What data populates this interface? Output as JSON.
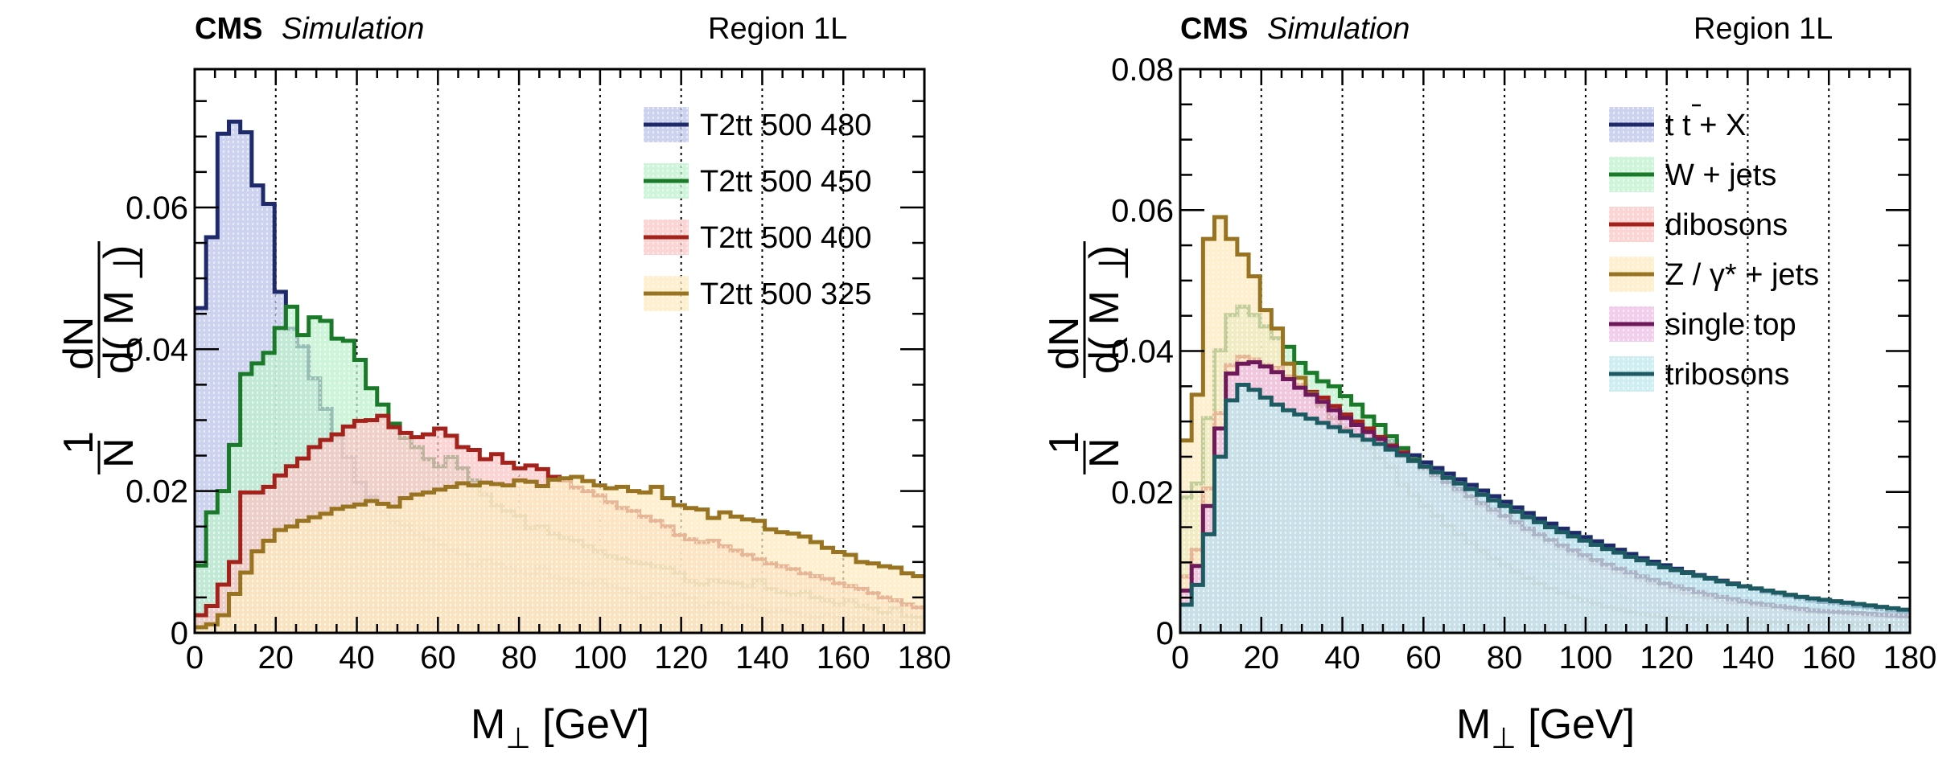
{
  "chart_data": [
    {
      "type": "line",
      "subtype": "step-histogram",
      "title": "CMS Simulation",
      "title_bold": "CMS",
      "title_italic": "Simulation",
      "region_label": "Region 1L",
      "xlabel": "M⊥ [GeV]",
      "ylabel": "1/N dN/d(M⊥)",
      "ylabel_parts": {
        "one": "1",
        "n": "N",
        "dn": "dN",
        "dm": "d( M",
        "perp": "⊥",
        "close": ")"
      },
      "xlim": [
        0,
        180
      ],
      "ylim": [
        0,
        0.0795
      ],
      "x_ticks": [
        0,
        20,
        40,
        60,
        80,
        100,
        120,
        140,
        160,
        180
      ],
      "x_tick_labels": [
        "0",
        "20",
        "40",
        "60",
        "80",
        "100",
        "120",
        "140",
        "160",
        "180"
      ],
      "y_ticks": [
        0,
        0.02,
        0.04,
        0.06
      ],
      "y_tick_labels": [
        "0",
        "0.02",
        "0.04",
        "0.06"
      ],
      "grid": "vertical dotted",
      "legend_position": "top-right",
      "bin_width": 2.8125,
      "series": [
        {
          "name": "T2tt 500 480",
          "line_color": "#1f2a6b",
          "fill_color": "#bcc3ea",
          "values": [
            0.0458,
            0.0558,
            0.0704,
            0.0721,
            0.0706,
            0.0631,
            0.0605,
            0.0481,
            0.0429,
            0.0404,
            0.0359,
            0.0316,
            0.0277,
            0.0248,
            0.0212,
            0.0192,
            0.017,
            0.0156,
            0.0152,
            0.014,
            0.0132,
            0.0124,
            0.0117,
            0.011,
            0.0096,
            0.0102,
            0.0098,
            0.0092,
            0.0086,
            0.0082,
            0.0093,
            0.0079,
            0.0076,
            0.0072,
            0.0068,
            0.0074,
            0.0066,
            0.0062,
            0.0058,
            0.005,
            0.0055,
            0.0052,
            0.0054,
            0.0049,
            0.0037,
            0.0043,
            0.0041,
            0.0035,
            0.0038,
            0.0033,
            0.003,
            0.0032,
            0.0028,
            0.0025,
            0.0022,
            0.0026,
            0.0021,
            0.0018,
            0.002,
            0.0017,
            0.0019,
            0.0016,
            0.0014,
            0.0013
          ]
        },
        {
          "name": "T2tt 500 450",
          "line_color": "#1a7a2a",
          "fill_color": "#bdf0cc",
          "values": [
            0.0095,
            0.017,
            0.02,
            0.0265,
            0.0365,
            0.038,
            0.0395,
            0.043,
            0.046,
            0.042,
            0.0445,
            0.044,
            0.0415,
            0.0412,
            0.0385,
            0.0345,
            0.0322,
            0.0295,
            0.0275,
            0.0262,
            0.0245,
            0.0235,
            0.0248,
            0.0232,
            0.0215,
            0.0195,
            0.018,
            0.0172,
            0.0165,
            0.0148,
            0.015,
            0.014,
            0.0134,
            0.013,
            0.0122,
            0.0115,
            0.0108,
            0.0105,
            0.01,
            0.0098,
            0.0094,
            0.0092,
            0.0085,
            0.0073,
            0.0068,
            0.0074,
            0.0072,
            0.007,
            0.0066,
            0.0074,
            0.0062,
            0.0058,
            0.0054,
            0.0058,
            0.005,
            0.0046,
            0.004,
            0.0046,
            0.0038,
            0.0034,
            0.0028,
            0.0035,
            0.0024,
            0.0022
          ]
        },
        {
          "name": "T2tt 500 400",
          "line_color": "#a3221c",
          "fill_color": "#f9c6c4",
          "values": [
            0.0025,
            0.0038,
            0.0068,
            0.01,
            0.0198,
            0.0198,
            0.0206,
            0.0222,
            0.0235,
            0.0246,
            0.0262,
            0.0272,
            0.028,
            0.0291,
            0.0299,
            0.03,
            0.0306,
            0.029,
            0.0282,
            0.0276,
            0.028,
            0.0288,
            0.0278,
            0.0262,
            0.0258,
            0.0245,
            0.0252,
            0.024,
            0.0232,
            0.0236,
            0.0231,
            0.022,
            0.0215,
            0.0205,
            0.02,
            0.0194,
            0.0184,
            0.0176,
            0.0172,
            0.0164,
            0.0158,
            0.015,
            0.0138,
            0.0132,
            0.0128,
            0.013,
            0.0122,
            0.0116,
            0.011,
            0.0104,
            0.0098,
            0.0094,
            0.009,
            0.0084,
            0.008,
            0.0076,
            0.007,
            0.0066,
            0.0062,
            0.0056,
            0.005,
            0.0046,
            0.004,
            0.0036
          ]
        },
        {
          "name": "T2tt 500 325",
          "line_color": "#987321",
          "fill_color": "#fde9bd",
          "values": [
            0.0008,
            0.0012,
            0.0025,
            0.0055,
            0.0085,
            0.0115,
            0.013,
            0.0145,
            0.015,
            0.0158,
            0.0163,
            0.0168,
            0.0175,
            0.0178,
            0.0181,
            0.0186,
            0.0182,
            0.0178,
            0.019,
            0.0195,
            0.0198,
            0.0202,
            0.0206,
            0.0211,
            0.0208,
            0.0212,
            0.021,
            0.0208,
            0.0215,
            0.0213,
            0.0207,
            0.0216,
            0.0218,
            0.022,
            0.0214,
            0.0208,
            0.0204,
            0.0206,
            0.02,
            0.0198,
            0.0206,
            0.019,
            0.018,
            0.0176,
            0.0174,
            0.0162,
            0.017,
            0.0164,
            0.016,
            0.0158,
            0.0146,
            0.0142,
            0.014,
            0.0136,
            0.0128,
            0.012,
            0.0114,
            0.011,
            0.01,
            0.0098,
            0.0094,
            0.0092,
            0.0084,
            0.008
          ]
        }
      ]
    },
    {
      "type": "line",
      "subtype": "step-histogram",
      "title": "CMS Simulation",
      "title_bold": "CMS",
      "title_italic": "Simulation",
      "region_label": "Region 1L",
      "xlabel": "M⊥ [GeV]",
      "ylabel": "1/N dN/d(M⊥)",
      "ylabel_parts": {
        "one": "1",
        "n": "N",
        "dn": "dN",
        "dm": "d( M",
        "perp": "⊥",
        "close": ")"
      },
      "xlim": [
        0,
        180
      ],
      "ylim": [
        0,
        0.08
      ],
      "x_ticks": [
        0,
        20,
        40,
        60,
        80,
        100,
        120,
        140,
        160,
        180
      ],
      "x_tick_labels": [
        "0",
        "20",
        "40",
        "60",
        "80",
        "100",
        "120",
        "140",
        "160",
        "180"
      ],
      "y_ticks": [
        0,
        0.02,
        0.04,
        0.06,
        0.08
      ],
      "y_tick_labels": [
        "0",
        "0.02",
        "0.04",
        "0.06",
        "0.08"
      ],
      "grid": "vertical dotted",
      "legend_position": "top-right",
      "bin_width": 2.8125,
      "series": [
        {
          "name": "t t̄ + X",
          "legend_main": "t t",
          "legend_suffix": " + X",
          "line_color": "#1f2a6b",
          "fill_color": "#bcc3ea",
          "values": [
            0.0056,
            0.0067,
            0.0128,
            0.0226,
            0.0314,
            0.035,
            0.0348,
            0.033,
            0.0321,
            0.0313,
            0.031,
            0.0305,
            0.03,
            0.0297,
            0.0292,
            0.0288,
            0.0284,
            0.0278,
            0.0272,
            0.0262,
            0.0252,
            0.0242,
            0.0234,
            0.0226,
            0.0218,
            0.021,
            0.0202,
            0.0194,
            0.0186,
            0.0178,
            0.017,
            0.0162,
            0.0155,
            0.0148,
            0.0142,
            0.0136,
            0.013,
            0.0124,
            0.0118,
            0.0112,
            0.0106,
            0.0101,
            0.0096,
            0.0091,
            0.0086,
            0.0082,
            0.0078,
            0.0074,
            0.007,
            0.0066,
            0.0062,
            0.0058,
            0.0055,
            0.0052,
            0.0049,
            0.0046,
            0.0044,
            0.0042,
            0.004,
            0.0038,
            0.0036,
            0.0034,
            0.0032,
            0.003
          ]
        },
        {
          "name": "W + jets",
          "line_color": "#1a7a2a",
          "fill_color": "#bdf0cc",
          "values": [
            0.0192,
            0.0212,
            0.0305,
            0.0401,
            0.0451,
            0.0463,
            0.0451,
            0.0435,
            0.0418,
            0.0406,
            0.0383,
            0.0369,
            0.0357,
            0.035,
            0.0336,
            0.0324,
            0.0307,
            0.0295,
            0.0279,
            0.0262,
            0.0246,
            0.0228,
            0.0212,
            0.0198,
            0.0186,
            0.0174,
            0.0162,
            0.015,
            0.0138,
            0.0127,
            0.0116,
            0.0106,
            0.0096,
            0.0088,
            0.008,
            0.0072,
            0.0065,
            0.0058,
            0.0052,
            0.0047,
            0.0042,
            0.0038,
            0.0034,
            0.0031,
            0.0028,
            0.0026,
            0.0024,
            0.0022,
            0.0021,
            0.002,
            0.0019,
            0.0018,
            0.0018,
            0.0017,
            0.0017,
            0.0016,
            0.0016,
            0.0016,
            0.0015,
            0.0015,
            0.0015,
            0.0015,
            0.0015,
            0.0015
          ]
        },
        {
          "name": "dibosons",
          "line_color": "#a3221c",
          "fill_color": "#f9c6c4",
          "values": [
            0.008,
            0.0118,
            0.0205,
            0.0312,
            0.038,
            0.0392,
            0.0388,
            0.038,
            0.0376,
            0.0364,
            0.0352,
            0.0342,
            0.0334,
            0.0322,
            0.031,
            0.03,
            0.029,
            0.0278,
            0.0266,
            0.0256,
            0.0244,
            0.0232,
            0.0222,
            0.021,
            0.02,
            0.019,
            0.018,
            0.0171,
            0.0162,
            0.0153,
            0.0144,
            0.0136,
            0.0128,
            0.012,
            0.0112,
            0.0105,
            0.0098,
            0.0092,
            0.0086,
            0.008,
            0.0075,
            0.007,
            0.0065,
            0.006,
            0.0056,
            0.0052,
            0.0049,
            0.0046,
            0.0043,
            0.0041,
            0.0039,
            0.0037,
            0.0035,
            0.0033,
            0.0031,
            0.003,
            0.0029,
            0.0028,
            0.0027,
            0.0026,
            0.0025,
            0.0024,
            0.0023,
            0.0022
          ]
        },
        {
          "name": "Z / γ* + jets",
          "line_color": "#987321",
          "fill_color": "#fde9bd",
          "values": [
            0.0273,
            0.0338,
            0.0559,
            0.059,
            0.0559,
            0.0537,
            0.0506,
            0.0458,
            0.0432,
            0.0382,
            0.0362,
            0.034,
            0.0322,
            0.0305,
            0.029,
            0.0276,
            0.0262,
            0.0248,
            0.0236,
            0.021,
            0.0196,
            0.018,
            0.0166,
            0.0152,
            0.014,
            0.0128,
            0.0116,
            0.0106,
            0.0096,
            0.0087,
            0.0078,
            0.007,
            0.0063,
            0.0057,
            0.0051,
            0.0046,
            0.0041,
            0.0037,
            0.0033,
            0.003,
            0.0027,
            0.0025,
            0.0023,
            0.0021,
            0.002,
            0.0019,
            0.0018,
            0.0017,
            0.0016,
            0.0016,
            0.0015,
            0.0015,
            0.0014,
            0.0014,
            0.0014,
            0.0013,
            0.0013,
            0.0013,
            0.0013,
            0.0012,
            0.0012,
            0.0012,
            0.0012,
            0.0012
          ]
        },
        {
          "name": "single top",
          "line_color": "#6e1a5a",
          "fill_color": "#ecbde6",
          "values": [
            0.006,
            0.0095,
            0.018,
            0.029,
            0.0368,
            0.0382,
            0.0384,
            0.0378,
            0.037,
            0.036,
            0.0348,
            0.0338,
            0.0328,
            0.0316,
            0.0305,
            0.0295,
            0.0285,
            0.0275,
            0.0264,
            0.0254,
            0.0244,
            0.0234,
            0.0224,
            0.0214,
            0.0204,
            0.0194,
            0.0184,
            0.0175,
            0.0166,
            0.0157,
            0.0148,
            0.014,
            0.0132,
            0.0124,
            0.0117,
            0.011,
            0.0103,
            0.0097,
            0.0091,
            0.0086,
            0.008,
            0.0075,
            0.007,
            0.0066,
            0.0062,
            0.0058,
            0.0054,
            0.0051,
            0.0048,
            0.0045,
            0.0042,
            0.004,
            0.0038,
            0.0036,
            0.0034,
            0.0032,
            0.0031,
            0.003,
            0.0029,
            0.0028,
            0.0027,
            0.0026,
            0.0025,
            0.0024
          ]
        },
        {
          "name": "tribosons",
          "line_color": "#1e5a62",
          "fill_color": "#bde8ec",
          "values": [
            0.004,
            0.0068,
            0.014,
            0.025,
            0.033,
            0.0352,
            0.0345,
            0.0334,
            0.0324,
            0.0316,
            0.031,
            0.0304,
            0.0298,
            0.0292,
            0.0286,
            0.028,
            0.0274,
            0.0268,
            0.026,
            0.0252,
            0.0244,
            0.0236,
            0.0228,
            0.022,
            0.0212,
            0.0204,
            0.0196,
            0.0188,
            0.018,
            0.0172,
            0.0164,
            0.0157,
            0.015,
            0.0143,
            0.0137,
            0.0131,
            0.0125,
            0.0119,
            0.0114,
            0.0108,
            0.0103,
            0.0098,
            0.0093,
            0.0089,
            0.0085,
            0.0081,
            0.0077,
            0.0073,
            0.0069,
            0.0066,
            0.0063,
            0.006,
            0.0057,
            0.0054,
            0.0051,
            0.0049,
            0.0047,
            0.0045,
            0.0043,
            0.0041,
            0.0039,
            0.0037,
            0.0035,
            0.0033
          ]
        }
      ]
    }
  ]
}
